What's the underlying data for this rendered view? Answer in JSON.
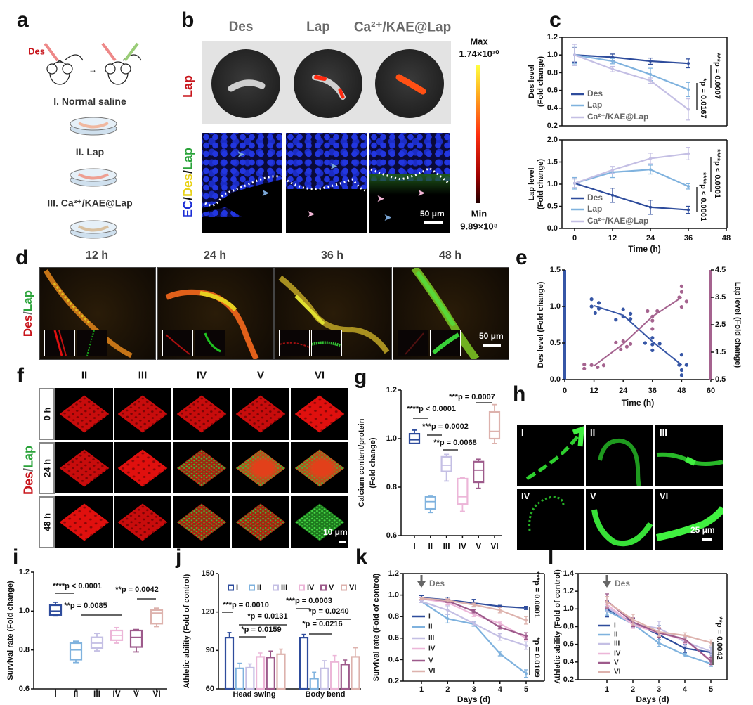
{
  "panel_letters": {
    "a": "a",
    "b": "b",
    "c": "c",
    "d": "d",
    "e": "e",
    "f": "f",
    "g": "g",
    "h": "h",
    "i": "i",
    "j": "j",
    "k": "k",
    "l": "l"
  },
  "panel_a": {
    "drug_label": "Des",
    "groups": [
      "I. Normal saline",
      "II. Lap",
      "III. Ca²⁺/KAE@Lap"
    ]
  },
  "panel_b": {
    "columns": [
      "Des",
      "Lap",
      "Ca²⁺/KAE@Lap"
    ],
    "row1_label": "Lap",
    "row2_label": {
      "ec": "EC",
      "sep": "/",
      "des": "Des",
      "lap": "Lap"
    },
    "colorbar": {
      "max_label": "Max",
      "max_value": "1.74×10¹⁰",
      "min_label": "Min",
      "min_value": "9.89×10⁸",
      "colors": [
        "#ffff40",
        "#ff3010",
        "#200000"
      ]
    },
    "scale_bar": "50 μm"
  },
  "panel_d": {
    "times": [
      "12 h",
      "24 h",
      "36 h",
      "48 h"
    ],
    "ylabel": {
      "des": "Des",
      "sep": "/",
      "lap": "Lap"
    },
    "scale_bar": "50 μm"
  },
  "panel_f": {
    "columns": [
      "II",
      "III",
      "IV",
      "V",
      "VI"
    ],
    "rows": [
      "0 h",
      "24 h",
      "48 h"
    ],
    "ylabel": {
      "des": "Des",
      "sep": "/",
      "lap": "Lap"
    },
    "scale_bar": "10 μm"
  },
  "panel_h": {
    "labels": [
      "I",
      "II",
      "III",
      "IV",
      "V",
      "VI"
    ],
    "scale_bar": "25 μm"
  },
  "group_colors": {
    "I": "#2e4c9c",
    "II": "#7fb2de",
    "III": "#c4bfe4",
    "IV": "#ecb6d8",
    "V": "#9d5a8b",
    "VI": "#ddb2ad"
  },
  "chart_data": [
    {
      "panel": "c",
      "type": "line",
      "ylabel": [
        "Des level",
        "(Fold change)"
      ],
      "xlabel": "",
      "x": [
        0,
        12,
        24,
        36
      ],
      "xlim": [
        0,
        48
      ],
      "ylim": [
        0.2,
        1.2
      ],
      "yticks": [
        0.2,
        0.4,
        0.6,
        0.8,
        1.0,
        1.2
      ],
      "ytick_labels": [
        "0.2",
        "0.4",
        "0.6",
        "0.8",
        "1.0",
        "1.2"
      ],
      "series": [
        {
          "name": "Des",
          "color": "#2e4c9c",
          "values": [
            1.0,
            0.975,
            0.93,
            0.905
          ],
          "errors": [
            0.08,
            0.035,
            0.035,
            0.05
          ]
        },
        {
          "name": "Lap",
          "color": "#7fb2de",
          "values": [
            1.0,
            0.93,
            0.78,
            0.61
          ],
          "errors": [
            0.1,
            0.03,
            0.07,
            0.08
          ]
        },
        {
          "name": "Ca²⁺/KAE@Lap",
          "color": "#c4bfe4",
          "values": [
            1.0,
            0.84,
            0.71,
            0.385
          ],
          "errors": [
            0.12,
            0.03,
            0.03,
            0.12
          ]
        }
      ],
      "legend": "bottom-left",
      "annotations": [
        "***p = 0.0007",
        "*p = 0.0167"
      ]
    },
    {
      "panel": "c",
      "type": "line",
      "ylabel": [
        "Lap level",
        "(Fold change)"
      ],
      "xlabel": "Time (h)",
      "x": [
        0,
        12,
        24,
        36
      ],
      "xlim": [
        0,
        48
      ],
      "xticks": [
        0,
        12,
        24,
        36,
        48
      ],
      "xtick_labels": [
        "0",
        "12",
        "24",
        "36",
        "48"
      ],
      "ylim": [
        0,
        2.0
      ],
      "yticks": [
        0,
        0.5,
        1.0,
        1.5,
        2.0
      ],
      "ytick_labels": [
        "0.0",
        "0.5",
        "1.0",
        "1.5",
        "2.0"
      ],
      "series": [
        {
          "name": "Des",
          "color": "#2e4c9c",
          "values": [
            1.02,
            0.75,
            0.48,
            0.42
          ],
          "errors": [
            0.1,
            0.16,
            0.16,
            0.08
          ]
        },
        {
          "name": "Lap",
          "color": "#7fb2de",
          "values": [
            1.02,
            1.27,
            1.33,
            0.95
          ],
          "errors": [
            0.13,
            0.12,
            0.1,
            0.06
          ]
        },
        {
          "name": "Ca²⁺/KAE@Lap",
          "color": "#c4bfe4",
          "values": [
            1.02,
            1.32,
            1.58,
            1.69
          ],
          "errors": [
            0.1,
            0.08,
            0.12,
            0.14
          ]
        }
      ],
      "legend": "bottom-left",
      "annotations": [
        "****p < 0.0001",
        "****p < 0.0001"
      ]
    },
    {
      "panel": "e",
      "type": "scatter",
      "xlabel": "Time (h)",
      "ylabel": "Des level (Fold change)",
      "y2label": "Lap level (Fold change)",
      "xlim": [
        0,
        60
      ],
      "xticks": [
        0,
        12,
        24,
        36,
        48,
        60
      ],
      "xtick_labels": [
        "0",
        "12",
        "24",
        "36",
        "48",
        "60"
      ],
      "ylim": [
        0,
        1.5
      ],
      "yticks": [
        0,
        0.5,
        1.0,
        1.5
      ],
      "ytick_labels": [
        "0.0",
        "0.5",
        "1.0",
        "1.5"
      ],
      "y2lim": [
        0.5,
        4.5
      ],
      "y2ticks": [
        0.5,
        1.5,
        2.5,
        3.5,
        4.5
      ],
      "y2tick_labels": [
        "0.5",
        "1.5",
        "2.5",
        "3.5",
        "4.5"
      ],
      "series": [
        {
          "name": "Des",
          "axis": "left",
          "color": "#3656a6",
          "points": [
            [
              11,
              1.1
            ],
            [
              11,
              1.0
            ],
            [
              12.5,
              0.91
            ],
            [
              14,
              1.05
            ],
            [
              14,
              0.97
            ],
            [
              21,
              0.82
            ],
            [
              24,
              0.96
            ],
            [
              24,
              0.86
            ],
            [
              27,
              0.9
            ],
            [
              27,
              0.83
            ],
            [
              33,
              0.5
            ],
            [
              36,
              0.57
            ],
            [
              36,
              0.48
            ],
            [
              36,
              0.4
            ],
            [
              39,
              0.49
            ],
            [
              47,
              0.2
            ],
            [
              48,
              0.34
            ],
            [
              48,
              0.13
            ],
            [
              48,
              0.06
            ],
            [
              50,
              0.2
            ]
          ],
          "fit": [
            [
              12,
              1.01
            ],
            [
              24,
              0.88
            ],
            [
              36,
              0.52
            ],
            [
              48,
              0.2
            ]
          ]
        },
        {
          "name": "Lap",
          "axis": "right",
          "color": "#a5638f",
          "points": [
            [
              8,
              1.05
            ],
            [
              8,
              0.9
            ],
            [
              11,
              1.03
            ],
            [
              13.5,
              0.95
            ],
            [
              16,
              1.02
            ],
            [
              21,
              1.85
            ],
            [
              23,
              1.6
            ],
            [
              24,
              1.9
            ],
            [
              25.5,
              1.7
            ],
            [
              27,
              1.8
            ],
            [
              34,
              3.0
            ],
            [
              36,
              2.8
            ],
            [
              36,
              2.65
            ],
            [
              36,
              2.35
            ],
            [
              38,
              3.0
            ],
            [
              47,
              3.5
            ],
            [
              48,
              3.9
            ],
            [
              48,
              3.7
            ],
            [
              48,
              3.15
            ],
            [
              50,
              3.35
            ]
          ],
          "fit": [
            [
              12,
              1.0
            ],
            [
              24,
              1.8
            ],
            [
              36,
              2.8
            ],
            [
              48,
              3.5
            ]
          ]
        }
      ]
    },
    {
      "panel": "g",
      "type": "box",
      "ylabel": [
        "Calcium content/protein",
        "(Fold change)"
      ],
      "categories": [
        "I",
        "II",
        "III",
        "IV",
        "V",
        "VI"
      ],
      "ylim": [
        0.6,
        1.2
      ],
      "yticks": [
        0.6,
        0.8,
        1.0,
        1.2
      ],
      "ytick_labels": [
        "0.6",
        "0.8",
        "1.0",
        "1.2"
      ],
      "boxes": [
        [
          0.98,
          0.98,
          0.995,
          1.02,
          1.035
        ],
        [
          0.695,
          0.71,
          0.74,
          0.76,
          0.765
        ],
        [
          0.825,
          0.865,
          0.89,
          0.925,
          0.935
        ],
        [
          0.7,
          0.73,
          0.76,
          0.835,
          0.84
        ],
        [
          0.795,
          0.82,
          0.87,
          0.905,
          0.915
        ],
        [
          0.98,
          1.0,
          1.03,
          1.11,
          1.14
        ]
      ],
      "annotations": [
        "***p = 0.0007",
        "****p < 0.0001",
        "***p = 0.0002",
        "**p = 0.0068"
      ]
    },
    {
      "panel": "i",
      "type": "box",
      "ylabel": "Survival rate (Fold change)",
      "categories": [
        "I",
        "II",
        "III",
        "IV",
        "V",
        "VI"
      ],
      "ylim": [
        0.6,
        1.2
      ],
      "yticks": [
        0.6,
        0.8,
        1.0,
        1.2
      ],
      "ytick_labels": [
        "0.6",
        "0.8",
        "1.0",
        "1.2"
      ],
      "boxes": [
        [
          0.975,
          0.98,
          1.0,
          1.03,
          1.045
        ],
        [
          0.735,
          0.75,
          0.8,
          0.835,
          0.845
        ],
        [
          0.795,
          0.81,
          0.835,
          0.865,
          0.885
        ],
        [
          0.835,
          0.85,
          0.875,
          0.9,
          0.915
        ],
        [
          0.79,
          0.815,
          0.865,
          0.9,
          0.905
        ],
        [
          0.92,
          0.935,
          0.99,
          1.005,
          1.015
        ]
      ],
      "annotations": [
        "****p < 0.0001",
        "**p = 0.0085",
        "**p = 0.0042"
      ]
    },
    {
      "panel": "j",
      "type": "bar",
      "ylabel": "Athletic ability (Fold of control)",
      "categories": [
        "Head swing",
        "Body bend"
      ],
      "ylim": [
        60,
        150
      ],
      "yticks": [
        60,
        90,
        120,
        150
      ],
      "ytick_labels": [
        "60",
        "90",
        "120",
        "150"
      ],
      "series": [
        {
          "name": "I",
          "values": [
            100,
            100
          ],
          "errors": [
            4,
            2.5
          ]
        },
        {
          "name": "II",
          "values": [
            76,
            68
          ],
          "errors": [
            4,
            5
          ]
        },
        {
          "name": "III",
          "values": [
            76.5,
            76
          ],
          "errors": [
            3,
            6
          ]
        },
        {
          "name": "IV",
          "values": [
            85,
            81
          ],
          "errors": [
            3,
            5
          ]
        },
        {
          "name": "V",
          "values": [
            84.5,
            79
          ],
          "errors": [
            5,
            3.5
          ]
        },
        {
          "name": "VI",
          "values": [
            87,
            85
          ],
          "errors": [
            4,
            7
          ]
        }
      ],
      "legend": "top",
      "annotations": [
        "***p = 0.0010",
        "*p = 0.0131",
        "*p = 0.0159",
        "***p = 0.0003",
        "*p = 0.0240",
        "*p = 0.0216"
      ]
    },
    {
      "panel": "k",
      "type": "line",
      "xlabel": "Days (d)",
      "ylabel": "Survival rate (Fold of control)",
      "x": [
        1,
        2,
        3,
        4,
        5
      ],
      "xticks": [
        1,
        2,
        3,
        4,
        5
      ],
      "xtick_labels": [
        "1",
        "2",
        "3",
        "4",
        "5"
      ],
      "ylim": [
        0.2,
        1.2
      ],
      "yticks": [
        0.2,
        0.4,
        0.6,
        0.8,
        1.0,
        1.2
      ],
      "ytick_labels": [
        "0.2",
        "0.4",
        "0.6",
        "0.8",
        "1.0",
        "1.2"
      ],
      "marker_label": "Des",
      "series": [
        {
          "name": "I",
          "values": [
            0.975,
            0.955,
            0.925,
            0.895,
            0.88
          ],
          "errors": [
            0.02,
            0.025,
            0.035,
            0.01,
            0.015
          ]
        },
        {
          "name": "II",
          "values": [
            0.94,
            0.78,
            0.73,
            0.455,
            0.27
          ],
          "errors": [
            0.01,
            0.04,
            0.02,
            0.02,
            0.035
          ]
        },
        {
          "name": "III",
          "values": [
            0.94,
            0.86,
            0.735,
            0.61,
            0.53
          ],
          "errors": [
            0.01,
            0.04,
            0.02,
            0.03,
            0.035
          ]
        },
        {
          "name": "IV",
          "values": [
            0.965,
            0.93,
            0.82,
            0.735,
            0.6
          ],
          "errors": [
            0.01,
            0.02,
            0.02,
            0.015,
            0.02
          ]
        },
        {
          "name": "V",
          "values": [
            0.97,
            0.945,
            0.85,
            0.7,
            0.62
          ],
          "errors": [
            0.01,
            0.015,
            0.015,
            0.015,
            0.03
          ]
        },
        {
          "name": "VI",
          "values": [
            0.97,
            0.95,
            0.91,
            0.86,
            0.765
          ],
          "errors": [
            0.01,
            0.015,
            0.015,
            0.025,
            0.035
          ]
        }
      ],
      "legend": "left",
      "annotations": [
        "***p = 0.0001",
        "*p = 0.0109"
      ]
    },
    {
      "panel": "l",
      "type": "line",
      "xlabel": "Days (d)",
      "ylabel": "Athletic ability (Fold of control)",
      "x": [
        1,
        2,
        3,
        4,
        5
      ],
      "xticks": [
        1,
        2,
        3,
        4,
        5
      ],
      "xtick_labels": [
        "1",
        "2",
        "3",
        "4",
        "5"
      ],
      "ylim": [
        0.2,
        1.4
      ],
      "yticks": [
        0.2,
        0.4,
        0.6,
        0.8,
        1.0,
        1.2,
        1.4
      ],
      "ytick_labels": [
        "0.2",
        "0.4",
        "0.6",
        "0.8",
        "1.0",
        "1.2",
        "1.4"
      ],
      "marker_label": "Des",
      "series": [
        {
          "name": "I",
          "values": [
            1.0,
            0.845,
            0.71,
            0.555,
            0.51
          ],
          "errors": [
            0.09,
            0.05,
            0.1,
            0.05,
            0.06
          ]
        },
        {
          "name": "II",
          "values": [
            0.98,
            0.83,
            0.615,
            0.48,
            0.38
          ],
          "errors": [
            0.05,
            0.03,
            0.04,
            0.02,
            0.03
          ]
        },
        {
          "name": "III",
          "values": [
            1.02,
            0.83,
            0.78,
            0.63,
            0.52
          ],
          "errors": [
            0.05,
            0.04,
            0.08,
            0.05,
            0.04
          ]
        },
        {
          "name": "IV",
          "values": [
            1.05,
            0.82,
            0.73,
            0.65,
            0.42
          ],
          "errors": [
            0.05,
            0.04,
            0.05,
            0.04,
            0.04
          ]
        },
        {
          "name": "V",
          "values": [
            1.09,
            0.85,
            0.73,
            0.66,
            0.41
          ],
          "errors": [
            0.08,
            0.05,
            0.05,
            0.04,
            0.04
          ]
        },
        {
          "name": "VI",
          "values": [
            1.08,
            0.88,
            0.74,
            0.7,
            0.62
          ],
          "errors": [
            0.06,
            0.06,
            0.05,
            0.03,
            0.03
          ]
        }
      ],
      "legend": "left",
      "annotations": [
        "**p = 0.0042"
      ]
    }
  ]
}
